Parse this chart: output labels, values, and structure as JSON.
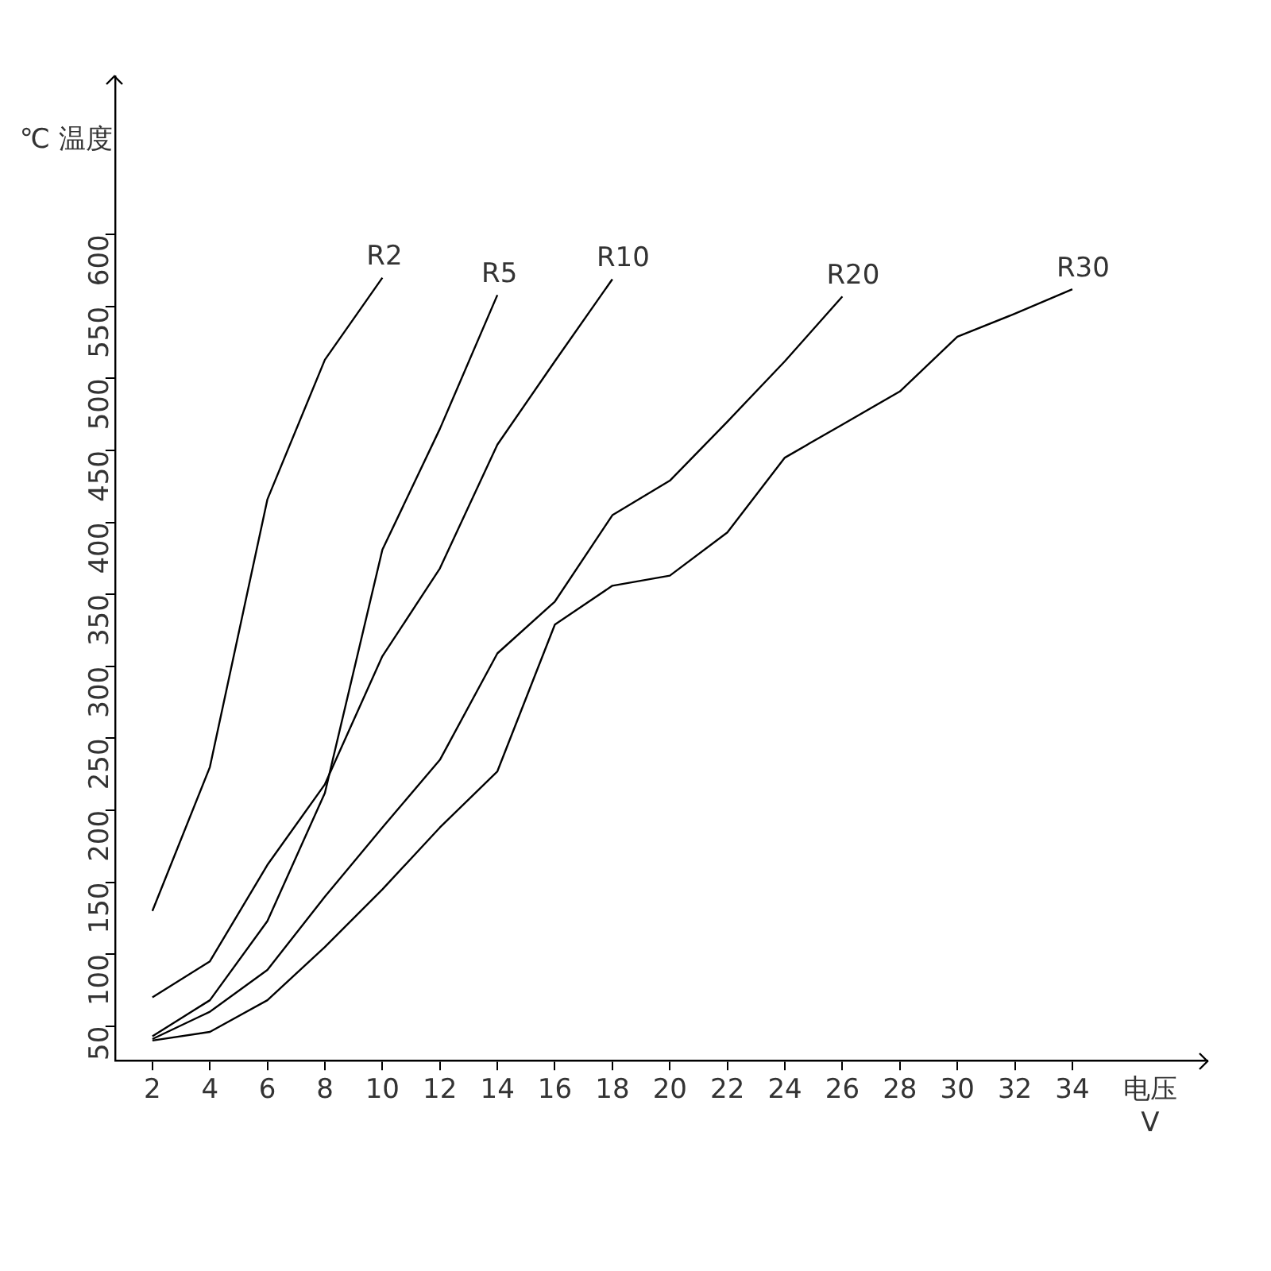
{
  "chart_data": {
    "type": "line",
    "xlabel": "电压 V",
    "ylabel": "℃ 温度",
    "x": [
      2,
      4,
      6,
      8,
      10,
      12,
      14,
      16,
      18,
      20,
      22,
      24,
      26,
      28,
      30,
      32,
      34
    ],
    "series": [
      {
        "name": "R2",
        "color": "#000000",
        "values": [
          130,
          230,
          416,
          513,
          570,
          null,
          null,
          null,
          null,
          null,
          null,
          null,
          null,
          null,
          null,
          null,
          null
        ]
      },
      {
        "name": "R5",
        "color": "#000000",
        "values": [
          43,
          68,
          123,
          212,
          381,
          465,
          558,
          null,
          null,
          null,
          null,
          null,
          null,
          null,
          null,
          null,
          null
        ]
      },
      {
        "name": "R10",
        "color": "#000000",
        "values": [
          70,
          95,
          162,
          218,
          307,
          368,
          454,
          512,
          569,
          null,
          null,
          null,
          null,
          null,
          null,
          null,
          null
        ]
      },
      {
        "name": "R20",
        "color": "#000000",
        "values": [
          41,
          60,
          89,
          140,
          188,
          235,
          309,
          345,
          405,
          429,
          470,
          512,
          557,
          null,
          null,
          null,
          null
        ]
      },
      {
        "name": "R30",
        "color": "#000000",
        "values": [
          40,
          46,
          68,
          105,
          145,
          188,
          227,
          329,
          356,
          363,
          393,
          445,
          468,
          491,
          529,
          545,
          562
        ]
      }
    ],
    "xlim": [
      0.7,
      38.7
    ],
    "ylim": [
      26,
      710
    ],
    "xticks": [
      2,
      4,
      6,
      8,
      10,
      12,
      14,
      16,
      18,
      20,
      22,
      24,
      26,
      28,
      30,
      32,
      34
    ],
    "yticks": [
      50,
      100,
      150,
      200,
      250,
      300,
      350,
      400,
      450,
      500,
      550,
      600
    ],
    "grid": false,
    "marker": "none",
    "line_style": "solid"
  }
}
